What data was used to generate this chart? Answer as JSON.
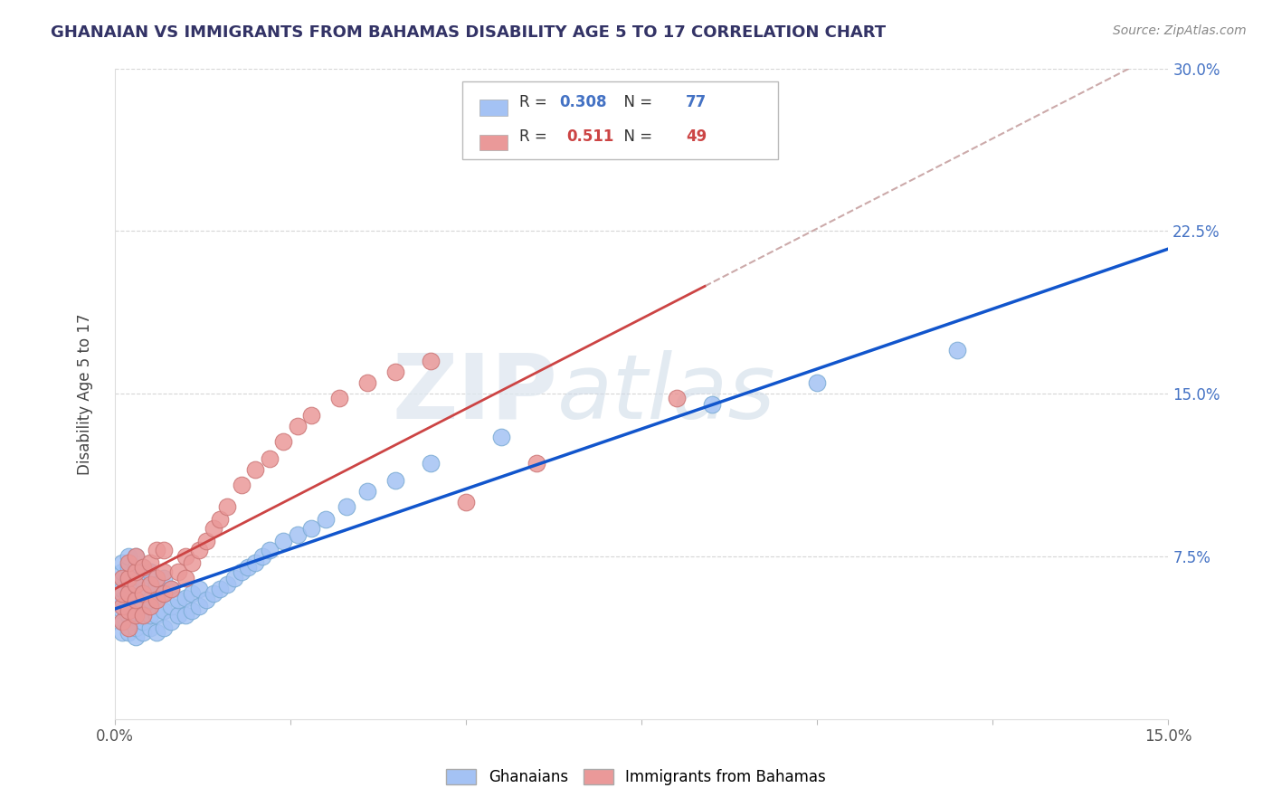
{
  "title": "GHANAIAN VS IMMIGRANTS FROM BAHAMAS DISABILITY AGE 5 TO 17 CORRELATION CHART",
  "source_text": "Source: ZipAtlas.com",
  "ylabel": "Disability Age 5 to 17",
  "xlim": [
    0.0,
    0.15
  ],
  "ylim": [
    0.0,
    0.3
  ],
  "ytick_positions": [
    0.075,
    0.15,
    0.225,
    0.3
  ],
  "ytick_labels": [
    "7.5%",
    "15.0%",
    "22.5%",
    "30.0%"
  ],
  "R_ghanaian": 0.308,
  "N_ghanaian": 77,
  "R_bahamas": 0.511,
  "N_bahamas": 49,
  "color_ghanaian": "#a4c2f4",
  "color_bahamas": "#ea9999",
  "trend_color_ghanaian": "#1155cc",
  "trend_color_bahamas": "#cc4444",
  "dashed_color": "#ccaaaa",
  "watermark_zip": "ZIP",
  "watermark_atlas": "atlas",
  "ghanaian_x": [
    0.001,
    0.001,
    0.001,
    0.001,
    0.001,
    0.001,
    0.001,
    0.001,
    0.002,
    0.002,
    0.002,
    0.002,
    0.002,
    0.002,
    0.002,
    0.002,
    0.003,
    0.003,
    0.003,
    0.003,
    0.003,
    0.003,
    0.003,
    0.003,
    0.003,
    0.004,
    0.004,
    0.004,
    0.004,
    0.004,
    0.004,
    0.005,
    0.005,
    0.005,
    0.005,
    0.005,
    0.006,
    0.006,
    0.006,
    0.006,
    0.007,
    0.007,
    0.007,
    0.007,
    0.008,
    0.008,
    0.008,
    0.009,
    0.009,
    0.01,
    0.01,
    0.011,
    0.011,
    0.012,
    0.012,
    0.013,
    0.014,
    0.015,
    0.016,
    0.017,
    0.018,
    0.019,
    0.02,
    0.021,
    0.022,
    0.024,
    0.026,
    0.028,
    0.03,
    0.033,
    0.036,
    0.04,
    0.045,
    0.055,
    0.085,
    0.1,
    0.12
  ],
  "ghanaian_y": [
    0.04,
    0.05,
    0.055,
    0.06,
    0.065,
    0.068,
    0.072,
    0.045,
    0.04,
    0.048,
    0.053,
    0.058,
    0.062,
    0.065,
    0.07,
    0.075,
    0.038,
    0.042,
    0.048,
    0.052,
    0.058,
    0.062,
    0.066,
    0.07,
    0.075,
    0.04,
    0.045,
    0.052,
    0.058,
    0.064,
    0.07,
    0.042,
    0.048,
    0.055,
    0.062,
    0.068,
    0.04,
    0.048,
    0.055,
    0.062,
    0.042,
    0.05,
    0.058,
    0.065,
    0.045,
    0.052,
    0.06,
    0.048,
    0.055,
    0.048,
    0.056,
    0.05,
    0.058,
    0.052,
    0.06,
    0.055,
    0.058,
    0.06,
    0.062,
    0.065,
    0.068,
    0.07,
    0.072,
    0.075,
    0.078,
    0.082,
    0.085,
    0.088,
    0.092,
    0.098,
    0.105,
    0.11,
    0.118,
    0.13,
    0.145,
    0.155,
    0.17
  ],
  "bahamas_x": [
    0.001,
    0.001,
    0.001,
    0.001,
    0.002,
    0.002,
    0.002,
    0.002,
    0.002,
    0.003,
    0.003,
    0.003,
    0.003,
    0.003,
    0.004,
    0.004,
    0.004,
    0.005,
    0.005,
    0.005,
    0.006,
    0.006,
    0.006,
    0.007,
    0.007,
    0.007,
    0.008,
    0.009,
    0.01,
    0.01,
    0.011,
    0.012,
    0.013,
    0.014,
    0.015,
    0.016,
    0.018,
    0.02,
    0.022,
    0.024,
    0.026,
    0.028,
    0.032,
    0.036,
    0.04,
    0.045,
    0.05,
    0.06,
    0.08
  ],
  "bahamas_y": [
    0.045,
    0.052,
    0.058,
    0.065,
    0.042,
    0.05,
    0.058,
    0.065,
    0.072,
    0.048,
    0.055,
    0.062,
    0.068,
    0.075,
    0.048,
    0.058,
    0.07,
    0.052,
    0.062,
    0.072,
    0.055,
    0.065,
    0.078,
    0.058,
    0.068,
    0.078,
    0.06,
    0.068,
    0.065,
    0.075,
    0.072,
    0.078,
    0.082,
    0.088,
    0.092,
    0.098,
    0.108,
    0.115,
    0.12,
    0.128,
    0.135,
    0.14,
    0.148,
    0.155,
    0.16,
    0.165,
    0.1,
    0.118,
    0.148
  ]
}
